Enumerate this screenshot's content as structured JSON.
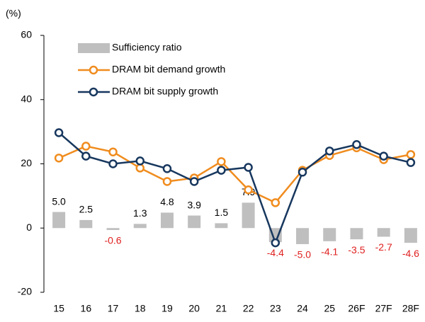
{
  "chart_data": {
    "type": "bar_line",
    "y_unit_label": "(%)",
    "categories": [
      "15",
      "16",
      "17",
      "18",
      "19",
      "20",
      "21",
      "22",
      "23",
      "24",
      "25",
      "26F",
      "27F",
      "28F"
    ],
    "ylim": [
      -20,
      60
    ],
    "yticks": [
      -20,
      0,
      20,
      40,
      60
    ],
    "series": [
      {
        "name": "Sufficiency ratio",
        "type": "bar",
        "color": "#bfbfbf",
        "values": [
          5.0,
          2.5,
          -0.6,
          1.3,
          4.8,
          3.9,
          1.5,
          7.9,
          -4.4,
          -5.0,
          -4.1,
          -3.5,
          -2.7,
          -4.6
        ],
        "value_labels": [
          "5.0",
          "2.5",
          "-0.6",
          "1.3",
          "4.8",
          "3.9",
          "1.5",
          "7.9",
          "-4.4",
          "-5.0",
          "-4.1",
          "-3.5",
          "-2.7",
          "-4.6"
        ]
      },
      {
        "name": "DRAM bit demand growth",
        "type": "line",
        "color": "#f08c1e",
        "values": [
          21.8,
          25.5,
          23.7,
          18.7,
          14.5,
          15.6,
          20.7,
          11.9,
          7.9,
          18.0,
          22.6,
          25.0,
          21.3,
          22.9
        ]
      },
      {
        "name": "DRAM bit supply growth",
        "type": "line",
        "color": "#17375e",
        "values": [
          29.7,
          22.4,
          20.0,
          20.9,
          18.5,
          14.5,
          18.0,
          18.9,
          -4.6,
          17.4,
          24.0,
          26.0,
          22.4,
          20.4
        ]
      }
    ],
    "negative_label_color": "#e02020"
  }
}
